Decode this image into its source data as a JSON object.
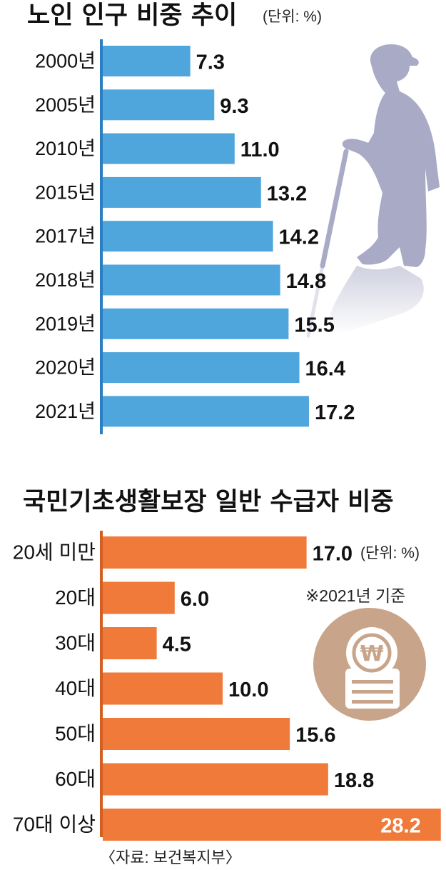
{
  "chart_data": [
    {
      "type": "bar",
      "orientation": "horizontal",
      "title": "노인 인구 비중 추이",
      "unit_label": "(단위: %)",
      "categories": [
        "2000년",
        "2005년",
        "2010년",
        "2015년",
        "2017년",
        "2018년",
        "2019년",
        "2020년",
        "2021년"
      ],
      "values": [
        7.3,
        9.3,
        11.0,
        13.2,
        14.2,
        14.8,
        15.5,
        16.4,
        17.2
      ],
      "value_labels": [
        "7.3",
        "9.3",
        "11.0",
        "13.2",
        "14.2",
        "14.8",
        "15.5",
        "16.4",
        "17.2"
      ],
      "xlim": [
        0,
        28.2
      ],
      "bar_color": "#4ea6dd",
      "axis_color": "#2b7ec1"
    },
    {
      "type": "bar",
      "orientation": "horizontal",
      "title": "국민기초생활보장 일반 수급자 비중",
      "unit_label": "(단위: %)",
      "note": "※2021년 기준",
      "categories": [
        "20세 미만",
        "20대",
        "30대",
        "40대",
        "50대",
        "60대",
        "70대 이상"
      ],
      "values": [
        17.0,
        6.0,
        4.5,
        10.0,
        15.6,
        18.8,
        28.2
      ],
      "value_labels": [
        "17.0",
        "6.0",
        "4.5",
        "10.0",
        "15.6",
        "18.8",
        "28.2"
      ],
      "xlim": [
        0,
        28.2
      ],
      "bar_color": "#ef7a3a",
      "axis_color": "#d45f22"
    }
  ],
  "source": "〈자료: 보건복지부〉",
  "illustrations": {
    "elderly": "elderly-woman-with-cane-icon",
    "coin": "won-coin-stack-icon",
    "elderly_color": "#a9abc6",
    "coin_bg_color": "#c8a58a",
    "won_symbol": "₩"
  }
}
